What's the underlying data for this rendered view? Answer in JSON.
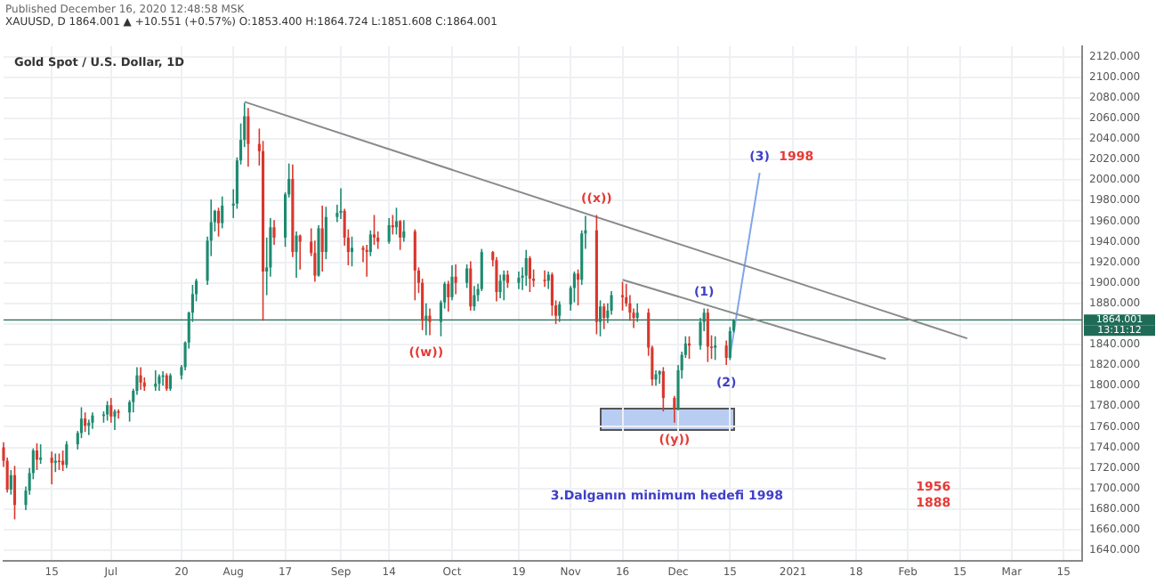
{
  "chart_data": {
    "type": "candlestick",
    "title": "Gold Spot / U.S. Dollar, 1D",
    "subtitle": "XAUUSD, D 1864.001 ▲ +10.551 (+0.57%) O:1853.400 H:1864.724 L:1851.608 C:1864.001",
    "xlim": [
      "2020-06-02",
      "2021-03-20"
    ],
    "xticks": [
      {
        "value": "2020-06-15",
        "label": "15"
      },
      {
        "value": "2020-07-01",
        "label": "Jul"
      },
      {
        "value": "2020-07-20",
        "label": "20"
      },
      {
        "value": "2020-08-03",
        "label": "Aug"
      },
      {
        "value": "2020-08-17",
        "label": "17"
      },
      {
        "value": "2020-09-01",
        "label": "Sep"
      },
      {
        "value": "2020-09-14",
        "label": "14"
      },
      {
        "value": "2020-10-01",
        "label": "Oct"
      },
      {
        "value": "2020-10-19",
        "label": "19"
      },
      {
        "value": "2020-11-02",
        "label": "Nov"
      },
      {
        "value": "2020-11-16",
        "label": "16"
      },
      {
        "value": "2020-12-01",
        "label": "Dec"
      },
      {
        "value": "2020-12-15",
        "label": "15"
      },
      {
        "value": "2021-01-01",
        "label": "2021"
      },
      {
        "value": "2021-01-18",
        "label": "18"
      },
      {
        "value": "2021-02-01",
        "label": "Feb"
      },
      {
        "value": "2021-02-15",
        "label": "15"
      },
      {
        "value": "2021-03-01",
        "label": "Mar"
      },
      {
        "value": "2021-03-15",
        "label": "15"
      }
    ],
    "ylim": [
      1630,
      2130
    ],
    "yticks": [
      {
        "value": 1640,
        "label": "1640.000"
      },
      {
        "value": 1660,
        "label": "1660.000"
      },
      {
        "value": 1680,
        "label": "1680.000"
      },
      {
        "value": 1700,
        "label": "1700.000"
      },
      {
        "value": 1720,
        "label": "1720.000"
      },
      {
        "value": 1740,
        "label": "1740.000"
      },
      {
        "value": 1760,
        "label": "1760.000"
      },
      {
        "value": 1780,
        "label": "1780.000"
      },
      {
        "value": 1800,
        "label": "1800.000"
      },
      {
        "value": 1820,
        "label": "1820.000"
      },
      {
        "value": 1840,
        "label": "1840.000"
      },
      {
        "value": 1860,
        "label": null
      },
      {
        "value": 1880,
        "label": "1880.000"
      },
      {
        "value": 1900,
        "label": "1900.000"
      },
      {
        "value": 1920,
        "label": "1920.000"
      },
      {
        "value": 1940,
        "label": "1940.000"
      },
      {
        "value": 1960,
        "label": "1960.000"
      },
      {
        "value": 1980,
        "label": "1980.000"
      },
      {
        "value": 2000,
        "label": "2000.000"
      },
      {
        "value": 2020,
        "label": "2020.000"
      },
      {
        "value": 2040,
        "label": "2040.000"
      },
      {
        "value": 2060,
        "label": "2060.000"
      },
      {
        "value": 2080,
        "label": "2080.000"
      },
      {
        "value": 2100,
        "label": "2100.000"
      },
      {
        "value": 2120,
        "label": "2120.000"
      }
    ],
    "grid": true,
    "series": [
      {
        "color": "#1e8a70",
        "x": [
          "2020-06-04",
          "2020-06-08",
          "2020-06-09",
          "2020-06-10",
          "2020-06-12",
          "2020-06-16",
          "2020-06-19",
          "2020-06-22",
          "2020-06-23",
          "2020-06-25",
          "2020-06-26",
          "2020-06-29",
          "2020-06-30",
          "2020-07-02",
          "2020-07-06",
          "2020-07-07",
          "2020-07-08",
          "2020-07-13",
          "2020-07-14",
          "2020-07-15",
          "2020-07-17",
          "2020-07-20",
          "2020-07-21",
          "2020-07-22",
          "2020-07-23",
          "2020-07-24",
          "2020-07-27",
          "2020-07-28",
          "2020-07-29",
          "2020-07-31",
          "2020-08-03",
          "2020-08-04",
          "2020-08-05",
          "2020-08-06",
          "2020-08-12",
          "2020-08-13",
          "2020-08-17",
          "2020-08-18",
          "2020-08-20",
          "2020-08-26",
          "2020-08-28",
          "2020-08-31",
          "2020-09-01",
          "2020-09-04",
          "2020-09-09",
          "2020-09-14",
          "2020-09-16",
          "2020-09-18",
          "2020-09-24",
          "2020-09-28",
          "2020-09-29",
          "2020-10-01",
          "2020-10-05",
          "2020-10-07",
          "2020-10-08",
          "2020-10-09",
          "2020-10-14",
          "2020-10-15",
          "2020-10-19",
          "2020-10-20",
          "2020-10-21",
          "2020-10-27",
          "2020-10-30",
          "2020-11-02",
          "2020-11-03",
          "2020-11-05",
          "2020-11-06",
          "2020-11-10",
          "2020-11-12",
          "2020-11-13",
          "2020-11-20",
          "2020-11-25",
          "2020-11-26",
          "2020-12-01",
          "2020-12-02",
          "2020-12-03",
          "2020-12-07",
          "2020-12-08",
          "2020-12-11",
          "2020-12-15",
          "2020-12-16"
        ],
        "ohlc": [
          [
            1699,
            1718,
            1694,
            1713
          ],
          [
            1684,
            1702,
            1679,
            1698
          ],
          [
            1698,
            1720,
            1694,
            1715
          ],
          [
            1715,
            1739,
            1709,
            1737
          ],
          [
            1728,
            1743,
            1724,
            1730
          ],
          [
            1725,
            1734,
            1716,
            1727
          ],
          [
            1723,
            1746,
            1720,
            1743
          ],
          [
            1743,
            1756,
            1738,
            1754
          ],
          [
            1754,
            1779,
            1749,
            1768
          ],
          [
            1761,
            1767,
            1752,
            1764
          ],
          [
            1764,
            1774,
            1758,
            1771
          ],
          [
            1771,
            1775,
            1764,
            1772
          ],
          [
            1772,
            1785,
            1766,
            1781
          ],
          [
            1770,
            1777,
            1757,
            1775
          ],
          [
            1774,
            1786,
            1765,
            1784
          ],
          [
            1784,
            1797,
            1774,
            1795
          ],
          [
            1795,
            1818,
            1791,
            1810
          ],
          [
            1799,
            1815,
            1795,
            1802
          ],
          [
            1802,
            1811,
            1795,
            1809
          ],
          [
            1809,
            1814,
            1800,
            1810
          ],
          [
            1797,
            1812,
            1795,
            1810
          ],
          [
            1810,
            1820,
            1806,
            1818
          ],
          [
            1818,
            1843,
            1815,
            1842
          ],
          [
            1842,
            1872,
            1836,
            1871
          ],
          [
            1871,
            1898,
            1862,
            1889
          ],
          [
            1889,
            1904,
            1882,
            1902
          ],
          [
            1902,
            1945,
            1898,
            1941
          ],
          [
            1941,
            1981,
            1926,
            1959
          ],
          [
            1959,
            1971,
            1950,
            1970
          ],
          [
            1958,
            1984,
            1953,
            1975
          ],
          [
            1975,
            1991,
            1963,
            1977
          ],
          [
            1977,
            2022,
            1972,
            2019
          ],
          [
            2019,
            2055,
            2015,
            2039
          ],
          [
            2039,
            2075,
            2032,
            2062
          ],
          [
            1911,
            1944,
            1888,
            1915
          ],
          [
            1915,
            1963,
            1906,
            1954
          ],
          [
            1944,
            1988,
            1935,
            1986
          ],
          [
            1986,
            2016,
            1983,
            2001
          ],
          [
            1930,
            1950,
            1905,
            1946
          ],
          [
            1907,
            1956,
            1906,
            1953
          ],
          [
            1930,
            1974,
            1923,
            1964
          ],
          [
            1964,
            1976,
            1959,
            1968
          ],
          [
            1968,
            1992,
            1962,
            1970
          ],
          [
            1930,
            1945,
            1916,
            1934
          ],
          [
            1930,
            1951,
            1926,
            1947
          ],
          [
            1940,
            1963,
            1938,
            1956
          ],
          [
            1954,
            1973,
            1947,
            1960
          ],
          [
            1944,
            1961,
            1940,
            1950
          ],
          [
            1863,
            1880,
            1849,
            1868
          ],
          [
            1862,
            1883,
            1848,
            1881
          ],
          [
            1881,
            1901,
            1875,
            1899
          ],
          [
            1886,
            1917,
            1883,
            1906
          ],
          [
            1900,
            1918,
            1895,
            1914
          ],
          [
            1877,
            1897,
            1873,
            1888
          ],
          [
            1888,
            1899,
            1882,
            1894
          ],
          [
            1894,
            1933,
            1892,
            1930
          ],
          [
            1891,
            1908,
            1885,
            1902
          ],
          [
            1902,
            1912,
            1883,
            1908
          ],
          [
            1900,
            1911,
            1894,
            1905
          ],
          [
            1905,
            1915,
            1893,
            1907
          ],
          [
            1907,
            1932,
            1897,
            1924
          ],
          [
            1902,
            1911,
            1894,
            1908
          ],
          [
            1868,
            1882,
            1862,
            1879
          ],
          [
            1879,
            1897,
            1873,
            1895
          ],
          [
            1895,
            1911,
            1881,
            1909
          ],
          [
            1903,
            1951,
            1898,
            1948
          ],
          [
            1948,
            1965,
            1933,
            1951
          ],
          [
            1862,
            1883,
            1848,
            1877
          ],
          [
            1866,
            1880,
            1861,
            1873
          ],
          [
            1873,
            1892,
            1869,
            1888
          ],
          [
            1866,
            1880,
            1862,
            1871
          ],
          [
            1806,
            1815,
            1800,
            1811
          ],
          [
            1811,
            1815,
            1802,
            1814
          ],
          [
            1777,
            1820,
            1776,
            1815
          ],
          [
            1815,
            1833,
            1807,
            1830
          ],
          [
            1830,
            1848,
            1827,
            1841
          ],
          [
            1839,
            1866,
            1835,
            1862
          ],
          [
            1862,
            1875,
            1853,
            1871
          ],
          [
            1837,
            1848,
            1825,
            1839
          ],
          [
            1827,
            1857,
            1825,
            1853
          ],
          [
            1853.4,
            1864.724,
            1851.608,
            1864.001
          ]
        ]
      },
      {
        "color": "#d9372c",
        "x": [
          "2020-06-02",
          "2020-06-03",
          "2020-06-05",
          "2020-06-11",
          "2020-06-15",
          "2020-06-17",
          "2020-06-18",
          "2020-06-24",
          "2020-07-01",
          "2020-07-03",
          "2020-07-09",
          "2020-07-10",
          "2020-07-16",
          "2020-07-30",
          "2020-08-07",
          "2020-08-10",
          "2020-08-11",
          "2020-08-14",
          "2020-08-19",
          "2020-08-21",
          "2020-08-24",
          "2020-08-25",
          "2020-08-27",
          "2020-09-02",
          "2020-09-03",
          "2020-09-07",
          "2020-09-08",
          "2020-09-10",
          "2020-09-11",
          "2020-09-15",
          "2020-09-17",
          "2020-09-21",
          "2020-09-22",
          "2020-09-23",
          "2020-09-25",
          "2020-09-30",
          "2020-10-02",
          "2020-10-06",
          "2020-10-12",
          "2020-10-13",
          "2020-10-16",
          "2020-10-22",
          "2020-10-23",
          "2020-10-26",
          "2020-10-28",
          "2020-10-29",
          "2020-11-04",
          "2020-11-09",
          "2020-11-11",
          "2020-11-16",
          "2020-11-17",
          "2020-11-18",
          "2020-11-19",
          "2020-11-23",
          "2020-11-24",
          "2020-11-27",
          "2020-11-30",
          "2020-12-04",
          "2020-12-09",
          "2020-12-10",
          "2020-12-14"
        ],
        "ohlc": [
          [
            1740,
            1745,
            1721,
            1727
          ],
          [
            1727,
            1730,
            1696,
            1699
          ],
          [
            1713,
            1722,
            1670,
            1684
          ],
          [
            1737,
            1744,
            1718,
            1728
          ],
          [
            1730,
            1736,
            1704,
            1725
          ],
          [
            1727,
            1734,
            1718,
            1726
          ],
          [
            1727,
            1737,
            1717,
            1723
          ],
          [
            1768,
            1774,
            1755,
            1761
          ],
          [
            1781,
            1788,
            1764,
            1770
          ],
          [
            1775,
            1777,
            1768,
            1774
          ],
          [
            1810,
            1818,
            1796,
            1803
          ],
          [
            1803,
            1808,
            1795,
            1799
          ],
          [
            1810,
            1812,
            1795,
            1797
          ],
          [
            1970,
            1973,
            1945,
            1958
          ],
          [
            2062,
            2070,
            2013,
            2035
          ],
          [
            2035,
            2050,
            2014,
            2028
          ],
          [
            2028,
            2038,
            1863,
            1911
          ],
          [
            1954,
            1961,
            1937,
            1944
          ],
          [
            2001,
            2015,
            1925,
            1930
          ],
          [
            1946,
            1947,
            1913,
            1940
          ],
          [
            1940,
            1953,
            1926,
            1929
          ],
          [
            1929,
            1941,
            1901,
            1907
          ],
          [
            1953,
            1975,
            1911,
            1930
          ],
          [
            1970,
            1972,
            1936,
            1944
          ],
          [
            1944,
            1952,
            1917,
            1930
          ],
          [
            1934,
            1936,
            1920,
            1932
          ],
          [
            1932,
            1937,
            1906,
            1930
          ],
          [
            1947,
            1966,
            1937,
            1944
          ],
          [
            1944,
            1950,
            1933,
            1940
          ],
          [
            1956,
            1966,
            1947,
            1954
          ],
          [
            1960,
            1961,
            1932,
            1944
          ],
          [
            1950,
            1952,
            1883,
            1912
          ],
          [
            1912,
            1915,
            1890,
            1900
          ],
          [
            1900,
            1904,
            1854,
            1863
          ],
          [
            1868,
            1875,
            1849,
            1862
          ],
          [
            1899,
            1902,
            1872,
            1886
          ],
          [
            1906,
            1918,
            1889,
            1900
          ],
          [
            1914,
            1921,
            1873,
            1877
          ],
          [
            1930,
            1931,
            1916,
            1922
          ],
          [
            1922,
            1925,
            1882,
            1891
          ],
          [
            1908,
            1912,
            1895,
            1900
          ],
          [
            1924,
            1926,
            1891,
            1904
          ],
          [
            1904,
            1913,
            1896,
            1902
          ],
          [
            1903,
            1912,
            1896,
            1902
          ],
          [
            1908,
            1910,
            1868,
            1878
          ],
          [
            1878,
            1883,
            1860,
            1868
          ],
          [
            1909,
            1913,
            1878,
            1903
          ],
          [
            1951,
            1966,
            1850,
            1862
          ],
          [
            1877,
            1880,
            1855,
            1866
          ],
          [
            1888,
            1901,
            1873,
            1886
          ],
          [
            1886,
            1899,
            1877,
            1880
          ],
          [
            1880,
            1888,
            1863,
            1871
          ],
          [
            1871,
            1875,
            1856,
            1866
          ],
          [
            1871,
            1875,
            1829,
            1837
          ],
          [
            1837,
            1839,
            1800,
            1806
          ],
          [
            1814,
            1818,
            1775,
            1788
          ],
          [
            1788,
            1790,
            1764,
            1777
          ],
          [
            1841,
            1848,
            1826,
            1839
          ],
          [
            1871,
            1875,
            1823,
            1838
          ],
          [
            1838,
            1849,
            1826,
            1837
          ],
          [
            1839,
            1844,
            1820,
            1827
          ]
        ]
      },
      {
        "type": "line",
        "color": "#8a8a8a",
        "x": [
          "2020-08-06",
          "2021-02-17"
        ],
        "values": [
          2076,
          1846
        ]
      },
      {
        "type": "line",
        "color": "#8a8a8a",
        "x": [
          "2020-11-16",
          "2021-01-26"
        ],
        "values": [
          1903,
          1826
        ]
      },
      {
        "type": "line",
        "color": "#7fa6e8",
        "x": [
          "2020-12-15",
          "2020-12-23"
        ],
        "values": [
          1829,
          2007
        ]
      }
    ],
    "ref_lines": [
      {
        "axis": "y",
        "value": 1864.001,
        "label": "1864.001",
        "color": "#1f6b57"
      }
    ],
    "annotations": [
      "Published December 16, 2020 12:48:58 MSK",
      "13:11:12",
      "1998",
      "3.Dalganın minimum hedefi 1998",
      "1956",
      "1888",
      {
        "text": "((w))",
        "x": "2020-09-24",
        "y": 1849
      },
      {
        "text": "((x))",
        "x": "2020-11-09",
        "y": 1966
      },
      {
        "text": "((y))",
        "x": "2020-11-30",
        "y": 1764
      },
      {
        "text": "(1)",
        "x": "2020-12-08",
        "y": 1875
      },
      {
        "text": "(2)",
        "x": "2020-12-14",
        "y": 1820
      },
      {
        "text": "(3)",
        "x": "2020-12-23",
        "y": 2007
      }
    ]
  }
}
